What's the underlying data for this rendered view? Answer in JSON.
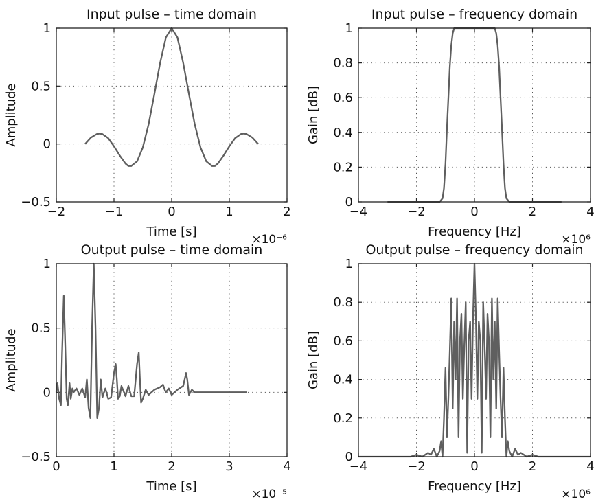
{
  "chart_data": [
    {
      "type": "line",
      "title": "Input pulse – time domain",
      "xlabel": "Time [s]",
      "ylabel": "Amplitude",
      "x_multiplier": "×10⁻⁶",
      "xlim": [
        -2,
        2
      ],
      "ylim": [
        -0.5,
        1
      ],
      "xticks": [
        -2,
        -1,
        0,
        1,
        2
      ],
      "xtick_labels": [
        "−2",
        "−1",
        "0",
        "1",
        "2"
      ],
      "yticks": [
        -0.5,
        0,
        0.5,
        1
      ],
      "ytick_labels": [
        "−0.5",
        "0",
        "0.5",
        "1"
      ],
      "grid": true,
      "series": [
        {
          "color": "#5f5f5f",
          "x": [
            -1.5,
            -1.4,
            -1.3,
            -1.25,
            -1.2,
            -1.1,
            -1.0,
            -0.9,
            -0.8,
            -0.75,
            -0.7,
            -0.6,
            -0.5,
            -0.4,
            -0.3,
            -0.2,
            -0.1,
            0,
            0.1,
            0.2,
            0.3,
            0.4,
            0.5,
            0.6,
            0.7,
            0.75,
            0.8,
            0.9,
            1.0,
            1.1,
            1.2,
            1.25,
            1.3,
            1.4,
            1.5
          ],
          "y": [
            0,
            0.055,
            0.085,
            0.09,
            0.085,
            0.05,
            -0.02,
            -0.1,
            -0.17,
            -0.19,
            -0.19,
            -0.15,
            -0.03,
            0.17,
            0.43,
            0.7,
            0.92,
            1.0,
            0.92,
            0.7,
            0.43,
            0.17,
            -0.03,
            -0.15,
            -0.19,
            -0.19,
            -0.17,
            -0.1,
            -0.02,
            0.05,
            0.085,
            0.09,
            0.085,
            0.055,
            0
          ]
        }
      ]
    },
    {
      "type": "line",
      "title": "Input pulse – frequency domain",
      "xlabel": "Frequency [Hz]",
      "ylabel": "Gain [dB]",
      "x_multiplier": "×10⁶",
      "xlim": [
        -4,
        4
      ],
      "ylim": [
        0,
        1
      ],
      "xticks": [
        -4,
        -2,
        0,
        2,
        4
      ],
      "xtick_labels": [
        "−4",
        "−2",
        "0",
        "2",
        "4"
      ],
      "yticks": [
        0,
        0.2,
        0.4,
        0.6,
        0.8,
        1
      ],
      "ytick_labels": [
        "0",
        "0.2",
        "0.4",
        "0.6",
        "0.8",
        "1"
      ],
      "grid": true,
      "series": [
        {
          "color": "#5f5f5f",
          "x": [
            -3,
            -1.5,
            -1.2,
            -1.1,
            -1.05,
            -1.0,
            -0.95,
            -0.9,
            -0.85,
            -0.8,
            -0.75,
            -0.7,
            -0.65,
            0.65,
            0.7,
            0.75,
            0.8,
            0.85,
            0.9,
            0.95,
            1.0,
            1.05,
            1.1,
            1.2,
            1.5,
            3
          ],
          "y": [
            0,
            0,
            0,
            0.02,
            0.08,
            0.22,
            0.42,
            0.6,
            0.78,
            0.9,
            0.97,
            1.0,
            1.0,
            1.0,
            1.0,
            0.97,
            0.9,
            0.78,
            0.6,
            0.42,
            0.22,
            0.08,
            0.02,
            0,
            0,
            0
          ]
        }
      ]
    },
    {
      "type": "line",
      "title": "Output pulse – time domain",
      "xlabel": "Time [s]",
      "ylabel": "Amplitude",
      "x_multiplier": "×10⁻⁵",
      "xlim": [
        0,
        4
      ],
      "ylim": [
        -0.5,
        1
      ],
      "xticks": [
        0,
        1,
        2,
        3,
        4
      ],
      "xtick_labels": [
        "0",
        "1",
        "2",
        "3",
        "4"
      ],
      "yticks": [
        -0.5,
        0,
        0.5,
        1
      ],
      "ytick_labels": [
        "−0.5",
        "0",
        "0.5",
        "1"
      ],
      "grid": true,
      "series": [
        {
          "color": "#5f5f5f",
          "x": [
            0,
            0.02,
            0.05,
            0.08,
            0.1,
            0.13,
            0.15,
            0.18,
            0.2,
            0.23,
            0.25,
            0.28,
            0.3,
            0.35,
            0.4,
            0.45,
            0.5,
            0.53,
            0.56,
            0.59,
            0.62,
            0.65,
            0.68,
            0.71,
            0.74,
            0.77,
            0.8,
            0.85,
            0.9,
            0.95,
            1.0,
            1.03,
            1.05,
            1.07,
            1.1,
            1.13,
            1.2,
            1.25,
            1.3,
            1.35,
            1.4,
            1.43,
            1.45,
            1.47,
            1.5,
            1.55,
            1.6,
            1.7,
            1.8,
            1.85,
            1.88,
            1.9,
            1.95,
            2.0,
            2.1,
            2.2,
            2.25,
            2.27,
            2.3,
            2.35,
            2.4,
            2.5,
            3.3
          ],
          "y": [
            0,
            0.07,
            -0.05,
            -0.1,
            0.3,
            0.75,
            0.45,
            -0.05,
            -0.1,
            0.07,
            -0.05,
            0.03,
            0,
            0.03,
            -0.02,
            0.03,
            -0.04,
            0.1,
            -0.12,
            -0.2,
            0.5,
            1.0,
            0.5,
            -0.2,
            -0.12,
            0.1,
            -0.04,
            0.03,
            -0.05,
            -0.04,
            0.15,
            0.22,
            0.1,
            -0.05,
            -0.03,
            0.05,
            -0.03,
            0.05,
            -0.03,
            -0.03,
            0.22,
            0.31,
            0.1,
            -0.08,
            -0.05,
            0.02,
            -0.02,
            0.02,
            0.04,
            0.06,
            0.02,
            0,
            0.03,
            -0.02,
            0.02,
            0.05,
            0.15,
            0.1,
            -0.02,
            0.02,
            0,
            0,
            0
          ]
        }
      ]
    },
    {
      "type": "line",
      "title": "Output pulse – frequency domain",
      "xlabel": "Frequency [Hz]",
      "ylabel": "Gain [dB]",
      "x_multiplier": "×10⁶",
      "xlim": [
        -4,
        4
      ],
      "ylim": [
        0,
        1
      ],
      "xticks": [
        -4,
        -2,
        0,
        2,
        4
      ],
      "xtick_labels": [
        "−4",
        "−2",
        "0",
        "2",
        "4"
      ],
      "yticks": [
        0,
        0.2,
        0.4,
        0.6,
        0.8,
        1
      ],
      "ytick_labels": [
        "0",
        "0.2",
        "0.4",
        "0.6",
        "0.8",
        "1"
      ],
      "grid": true,
      "series": [
        {
          "color": "#5f5f5f",
          "x": [
            -4,
            -2.2,
            -2.0,
            -1.8,
            -1.6,
            -1.5,
            -1.4,
            -1.3,
            -1.2,
            -1.15,
            -1.1,
            -1.05,
            -1.0,
            -0.95,
            -0.9,
            -0.85,
            -0.8,
            -0.75,
            -0.7,
            -0.65,
            -0.6,
            -0.55,
            -0.5,
            -0.45,
            -0.4,
            -0.35,
            -0.3,
            -0.25,
            -0.2,
            -0.15,
            -0.1,
            -0.05,
            0,
            0.05,
            0.1,
            0.15,
            0.2,
            0.25,
            0.3,
            0.35,
            0.4,
            0.45,
            0.5,
            0.55,
            0.6,
            0.65,
            0.7,
            0.75,
            0.8,
            0.85,
            0.9,
            0.95,
            1.0,
            1.05,
            1.1,
            1.15,
            1.2,
            1.3,
            1.4,
            1.5,
            1.6,
            1.8,
            2.0,
            2.2,
            4
          ],
          "y": [
            0,
            0,
            0.01,
            0,
            0.02,
            0.01,
            0.04,
            0,
            0.03,
            0.08,
            0,
            0.2,
            0.46,
            0.1,
            0.3,
            0.55,
            0.82,
            0.25,
            0.7,
            0.4,
            0.82,
            0.1,
            0.6,
            0.74,
            0.3,
            0.58,
            0.8,
            0.02,
            0.6,
            0.7,
            0.3,
            0.72,
            1.0,
            0.72,
            0.3,
            0.7,
            0.6,
            0.02,
            0.8,
            0.58,
            0.3,
            0.74,
            0.6,
            0.1,
            0.82,
            0.4,
            0.7,
            0.25,
            0.82,
            0.55,
            0.3,
            0.1,
            0.46,
            0.2,
            0,
            0.08,
            0.03,
            0,
            0.04,
            0.01,
            0.02,
            0,
            0.01,
            0,
            0
          ]
        }
      ]
    }
  ]
}
